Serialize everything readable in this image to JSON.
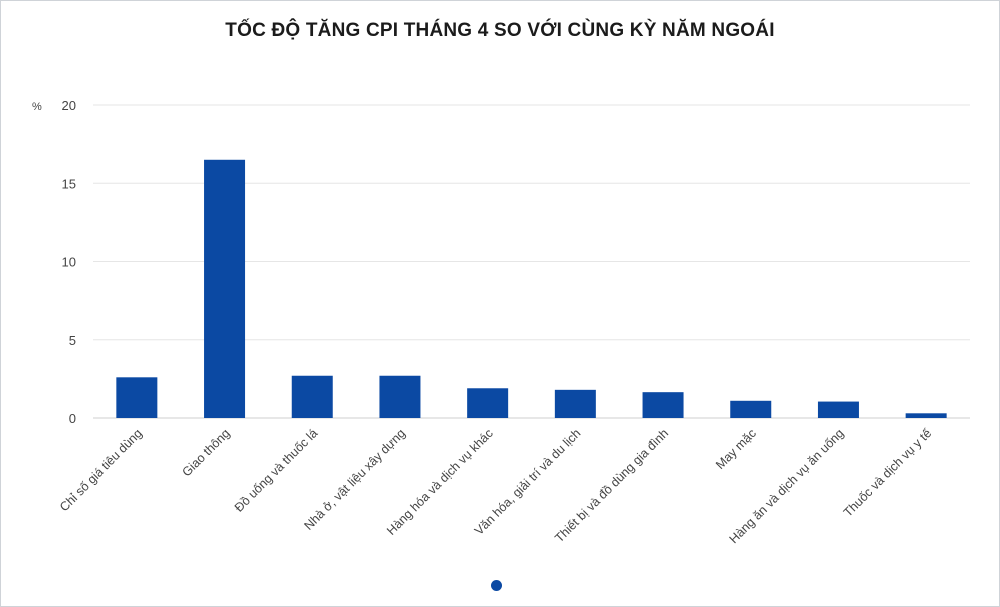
{
  "chart_data": {
    "type": "bar",
    "title": "TỐC ĐỘ TĂNG CPI THÁNG 4 SO VỚI CÙNG KỲ NĂM NGOÁI",
    "ylabel": "%",
    "xlabel": "",
    "ylim": [
      0,
      20
    ],
    "yticks": [
      0,
      5,
      10,
      15,
      20
    ],
    "grid": true,
    "bar_color": "#0b49a3",
    "categories": [
      "Chỉ số giá tiêu dùng",
      "Giao thông",
      "Đồ uống và thuốc lá",
      "Nhà ở, vật liệu xây dựng",
      "Hàng hóa và dịch vụ khác",
      "Văn hóa, giải trí và du lịch",
      "Thiết bị và đồ dùng gia đình",
      "May mặc",
      "Hàng ăn và dịch vụ ăn uống",
      "Thuốc và dịch vụ y tế"
    ],
    "values": [
      2.6,
      16.5,
      2.7,
      2.7,
      1.9,
      1.8,
      1.65,
      1.1,
      1.05,
      0.3
    ]
  }
}
